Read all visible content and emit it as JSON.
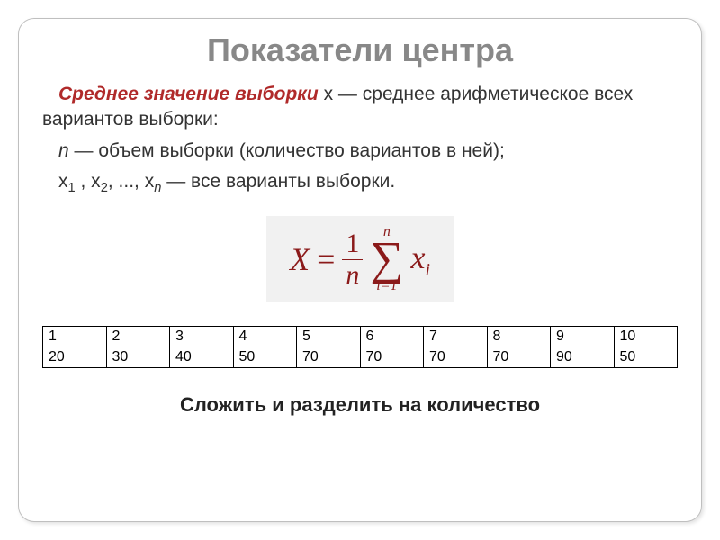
{
  "title": "Показатели центра",
  "p1_term": "Среднее значение выборки",
  "p1_rest": "  x — среднее арифметическое всех вариантов выборки:",
  "p2_it": "n",
  "p2_rest": " — объем выборки (количество вариантов в ней);",
  "p3_prefix": "x",
  "p3_sub1": "1",
  "p3_mid1": " , x",
  "p3_sub2": "2",
  "p3_mid2": ", ..., x",
  "p3_subn": "n",
  "p3_rest": " — все варианты выборки.",
  "formula": {
    "lhs": "X",
    "eq": "=",
    "frac_num": "1",
    "frac_den": "n",
    "sigma": "∑",
    "upper": "n",
    "lower": "i=1",
    "term": "x",
    "term_sub": "i",
    "text_color": "#8b1a1a",
    "box_bg": "#f1f1f1"
  },
  "table": {
    "type": "table",
    "columns": 10,
    "rows": [
      [
        "1",
        "2",
        "3",
        "4",
        "5",
        "6",
        "7",
        "8",
        "9",
        "10"
      ],
      [
        "20",
        "30",
        "40",
        "50",
        "70",
        "70",
        "70",
        "70",
        "90",
        "50"
      ]
    ],
    "border_color": "#000000",
    "font_size": 16
  },
  "footer": "Сложить и разделить на количество",
  "colors": {
    "title": "#888888",
    "term": "#b02a2a",
    "body": "#333333",
    "slide_border": "#bfbfbf",
    "background": "#ffffff"
  },
  "fontsizes": {
    "title": 36,
    "body": 21,
    "formula": 36,
    "table": 16,
    "footer": 22
  }
}
